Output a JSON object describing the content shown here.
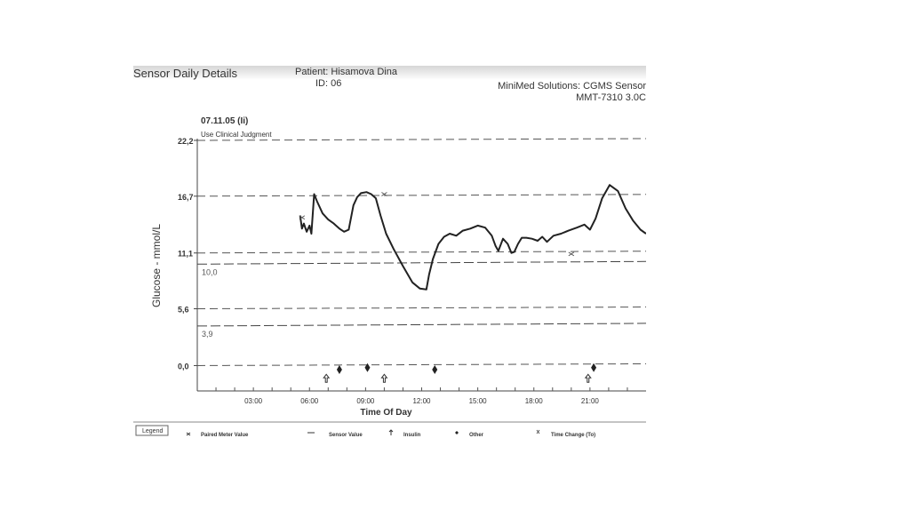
{
  "report": {
    "title": "Sensor Daily Details",
    "patient": "Patient: Hisamova Dina",
    "patient_id": "ID: 06",
    "device_line1": "MiniMed Solutions: CGMS Sensor",
    "device_line2": "MMT-7310 3.0C"
  },
  "plot": {
    "date": "07.11.05 (Ii)",
    "note": "Use Clinical Judgment"
  },
  "legend": {
    "title": "Legend",
    "items": [
      {
        "label": "Paired Meter Value",
        "icon": "x-marker-icon"
      },
      {
        "label": "Sensor Value",
        "icon": "line-marker-icon"
      },
      {
        "label": "Insulin",
        "icon": "syringe-icon"
      },
      {
        "label": "Other",
        "icon": "diamond-icon"
      },
      {
        "label": "Time Change (To)",
        "icon": "clock-change-icon"
      }
    ]
  },
  "chart_data": {
    "type": "line",
    "xlabel": "Time Of Day",
    "ylabel": "Glucose - mmol/L",
    "xlim": [
      0,
      24
    ],
    "ylim": [
      -2.5,
      22.2
    ],
    "x_ticks": [
      {
        "value": 3,
        "label": "03:00"
      },
      {
        "value": 6,
        "label": "06:00"
      },
      {
        "value": 9,
        "label": "09:00"
      },
      {
        "value": 12,
        "label": "12:00"
      },
      {
        "value": 15,
        "label": "15:00"
      },
      {
        "value": 18,
        "label": "18:00"
      },
      {
        "value": 21,
        "label": "21:00"
      }
    ],
    "y_ticks": [
      {
        "value": 22.2,
        "label": "22,2"
      },
      {
        "value": 16.7,
        "label": "16,7"
      },
      {
        "value": 11.1,
        "label": "11,1"
      },
      {
        "value": 5.6,
        "label": "5,6"
      },
      {
        "value": 0.0,
        "label": "0,0"
      }
    ],
    "reference_lines": [
      {
        "value": 10.0,
        "label": "10,0"
      },
      {
        "value": 3.9,
        "label": "3,9"
      }
    ],
    "grid": true,
    "series": [
      {
        "name": "Sensor Value",
        "x": [
          5.5,
          5.6,
          5.7,
          5.85,
          6.0,
          6.1,
          6.25,
          6.4,
          6.7,
          7.0,
          7.3,
          7.6,
          7.85,
          8.1,
          8.35,
          8.55,
          8.75,
          9.05,
          9.3,
          9.55,
          9.8,
          10.1,
          10.5,
          11.0,
          11.5,
          11.9,
          12.25,
          12.4,
          12.6,
          12.9,
          13.2,
          13.5,
          13.85,
          14.2,
          14.6,
          15.0,
          15.4,
          15.75,
          15.95,
          16.1,
          16.35,
          16.6,
          16.8,
          16.95,
          17.15,
          17.35,
          17.6,
          17.9,
          18.2,
          18.45,
          18.7,
          19.05,
          19.45,
          19.85,
          20.3,
          20.7,
          21.0,
          21.3,
          21.65,
          22.05,
          22.5,
          22.9,
          23.3,
          23.7,
          24.0
        ],
        "y": [
          14.8,
          13.5,
          14.0,
          13.2,
          13.8,
          13.0,
          16.9,
          16.2,
          15.0,
          14.4,
          14.0,
          13.5,
          13.2,
          13.4,
          15.8,
          16.6,
          17.0,
          17.1,
          16.9,
          16.5,
          14.8,
          13.0,
          11.5,
          9.8,
          8.2,
          7.6,
          7.5,
          9.0,
          10.5,
          12.0,
          12.7,
          13.0,
          12.8,
          13.3,
          13.5,
          13.8,
          13.6,
          12.8,
          11.8,
          11.3,
          12.5,
          12.0,
          11.1,
          11.2,
          12.0,
          12.6,
          12.6,
          12.5,
          12.3,
          12.7,
          12.2,
          12.8,
          13.0,
          13.3,
          13.6,
          13.9,
          13.4,
          14.5,
          16.5,
          17.8,
          17.2,
          15.5,
          14.3,
          13.4,
          13.0
        ]
      }
    ],
    "paired_meter_values": [
      {
        "x": 5.6,
        "y": 14.6
      },
      {
        "x": 10.0,
        "y": 16.9
      },
      {
        "x": 20.0,
        "y": 11.0
      }
    ],
    "insulin_events": [
      6.9,
      10.0,
      20.9
    ],
    "other_events": [
      7.6,
      9.1,
      12.7,
      21.2
    ]
  }
}
